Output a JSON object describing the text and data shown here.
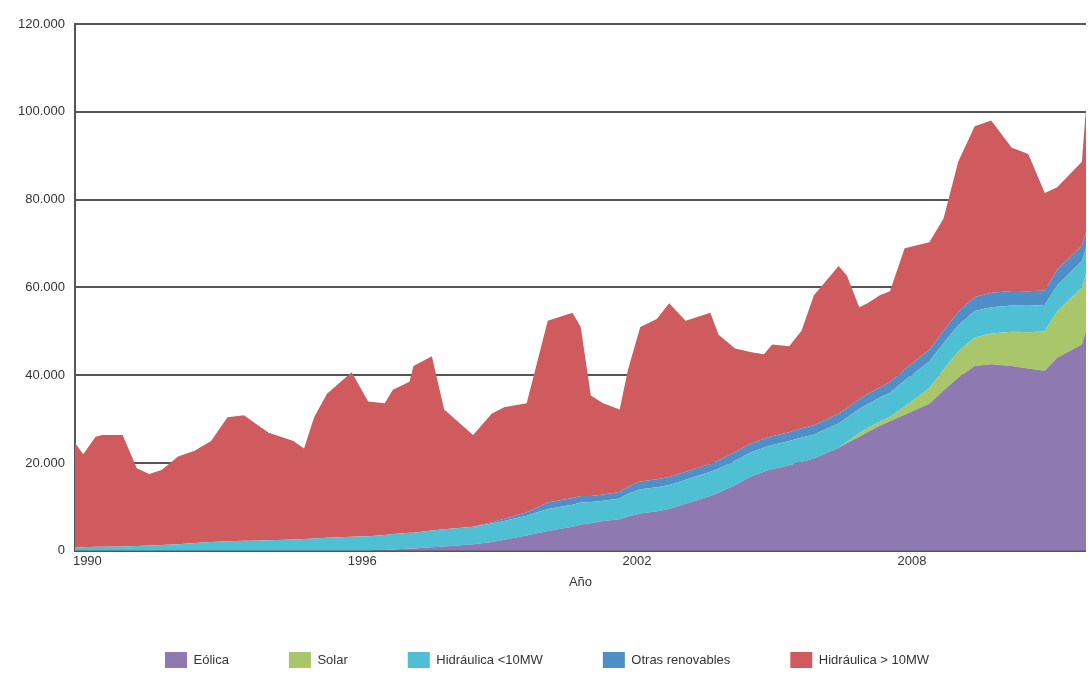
{
  "chart_data": {
    "type": "area",
    "stacked": true,
    "xlabel": "Año",
    "x": [
      1989.73,
      1989.91,
      1990.18,
      1990.32,
      1990.77,
      1991.08,
      1991.35,
      1991.62,
      1991.98,
      1992.34,
      1992.7,
      1993.06,
      1993.42,
      1993.6,
      1993.96,
      1994.5,
      1994.73,
      1994.95,
      1995.23,
      1995.77,
      1996.13,
      1996.49,
      1996.67,
      1997.03,
      1997.12,
      1997.52,
      1997.79,
      1998.42,
      1998.83,
      1999.1,
      1999.59,
      1999.82,
      2000.05,
      2000.59,
      2000.77,
      2000.99,
      2001.26,
      2001.62,
      2001.8,
      2002.07,
      2002.43,
      2002.7,
      2003.06,
      2003.6,
      2003.78,
      2004.14,
      2004.5,
      2004.77,
      2004.95,
      2005.32,
      2005.59,
      2005.86,
      2006.4,
      2006.58,
      2006.85,
      2007.03,
      2007.3,
      2007.52,
      2007.84,
      2008.38,
      2008.69,
      2009.01,
      2009.37,
      2009.73,
      2010.18,
      2010.54,
      2010.9,
      2011.17,
      2011.71,
      2011.8
    ],
    "series": [
      {
        "name": "Eólica",
        "color": "#8e79b0",
        "values": [
          0,
          0,
          0,
          0,
          0,
          0,
          0,
          0,
          0,
          0,
          0,
          0,
          0,
          0,
          0,
          0,
          0,
          0,
          0,
          0,
          0,
          200,
          300,
          500,
          500,
          800,
          1000,
          1500,
          2000,
          2500,
          3500,
          4000,
          4500,
          5500,
          6000,
          6300,
          6800,
          7200,
          7800,
          8500,
          9000,
          9500,
          10700,
          12500,
          13200,
          15000,
          17000,
          18000,
          18600,
          19500,
          20300,
          21000,
          23500,
          24500,
          26000,
          27000,
          28500,
          29500,
          31000,
          33500,
          36500,
          39400,
          42100,
          42500,
          42100,
          41500,
          41000,
          44000,
          47000,
          50000
        ]
      },
      {
        "name": "Solar",
        "color": "#a9c66a",
        "values": [
          0,
          0,
          0,
          0,
          0,
          0,
          0,
          0,
          0,
          0,
          0,
          0,
          0,
          0,
          0,
          0,
          0,
          0,
          0,
          0,
          0,
          0,
          0,
          0,
          0,
          0,
          0,
          0,
          0,
          0,
          0,
          0,
          0,
          0,
          0,
          0,
          0,
          0,
          0,
          0,
          0,
          0,
          0,
          0,
          0,
          0,
          0,
          0,
          0,
          0,
          0,
          0,
          0,
          300,
          800,
          900,
          900,
          1000,
          1800,
          3600,
          4800,
          6000,
          6500,
          7000,
          7800,
          8300,
          9000,
          10500,
          13000,
          13000
        ]
      },
      {
        "name": "Hidráulica <10MW",
        "color": "#4fbfd3",
        "values": [
          800,
          800,
          900,
          900,
          1000,
          1100,
          1200,
          1300,
          1500,
          1800,
          2000,
          2200,
          2300,
          2300,
          2400,
          2600,
          2700,
          2800,
          3000,
          3200,
          3300,
          3400,
          3500,
          3600,
          3600,
          3800,
          3900,
          4000,
          4200,
          4300,
          4500,
          4800,
          5000,
          5000,
          5000,
          4800,
          4600,
          4700,
          5200,
          5500,
          5500,
          5500,
          5500,
          5500,
          5500,
          5500,
          5500,
          5500,
          5500,
          5500,
          5500,
          5500,
          5500,
          5500,
          5500,
          5500,
          5500,
          5500,
          6000,
          6000,
          6000,
          6000,
          6000,
          6000,
          6000,
          6000,
          6000,
          6000,
          6000,
          6000
        ]
      },
      {
        "name": "Otras renovables",
        "color": "#4f8fc8",
        "values": [
          0,
          0,
          0,
          0,
          0,
          0,
          0,
          0,
          0,
          0,
          0,
          0,
          0,
          0,
          0,
          0,
          0,
          0,
          0,
          0,
          0,
          0,
          0,
          0,
          0,
          0,
          0,
          0,
          300,
          500,
          800,
          1000,
          1500,
          1500,
          1500,
          1400,
          1400,
          1500,
          1600,
          1800,
          1800,
          1800,
          1800,
          1800,
          1900,
          2000,
          2000,
          2000,
          2000,
          2000,
          2100,
          2100,
          2200,
          2200,
          2200,
          2300,
          2300,
          2400,
          2500,
          2700,
          2800,
          3000,
          3200,
          3300,
          3300,
          3300,
          3300,
          3500,
          3500,
          3500
        ]
      },
      {
        "name": "Hidráulica > 10MW",
        "color": "#d05b5e",
        "values": [
          23800,
          21200,
          25100,
          25500,
          25400,
          17700,
          16300,
          17100,
          20000,
          21000,
          23000,
          28200,
          28600,
          27200,
          24500,
          22400,
          20600,
          27600,
          32800,
          37500,
          30700,
          30000,
          32900,
          34400,
          38000,
          39700,
          27300,
          20900,
          24800,
          25400,
          24800,
          33200,
          41400,
          42200,
          38500,
          22900,
          20800,
          18800,
          26600,
          35200,
          36500,
          39600,
          34400,
          34400,
          28600,
          23600,
          20700,
          19300,
          20900,
          19600,
          22200,
          29600,
          33700,
          30200,
          21000,
          20700,
          21000,
          20700,
          27600,
          24500,
          25600,
          34200,
          38900,
          39200,
          32600,
          31300,
          22200,
          18800,
          19100,
          28500
        ]
      }
    ],
    "xlim": [
      1989.73,
      2011.8
    ],
    "xticks": [
      1990,
      1996,
      2002,
      2008
    ],
    "ylim": [
      0,
      120000
    ],
    "yticks": [
      0,
      {
        "value": 20000,
        "label": "20.000"
      },
      {
        "value": 40000,
        "label": "40.000"
      },
      {
        "value": 60000,
        "label": "60.000"
      },
      {
        "value": 80000,
        "label": "80.000"
      },
      {
        "value": 100000,
        "label": "100.000"
      },
      {
        "value": 120000,
        "label": "120.000"
      }
    ],
    "grid": "y",
    "legend": "bottom"
  }
}
